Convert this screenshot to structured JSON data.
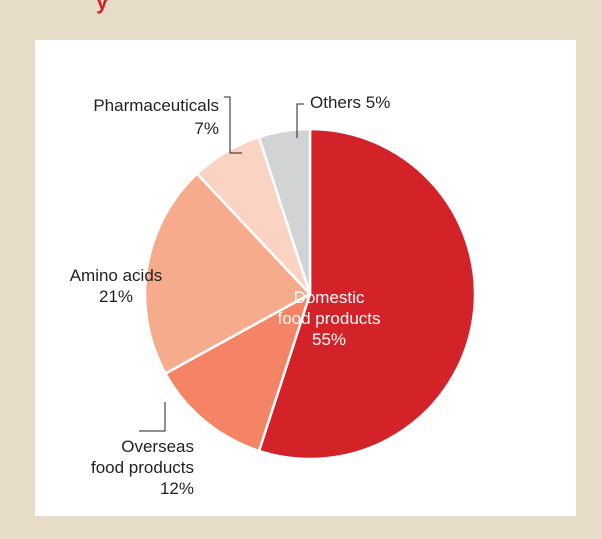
{
  "header_fragment": "y",
  "chart_data": {
    "type": "pie",
    "start_angle_deg": 0,
    "direction": "clockwise",
    "slices": [
      {
        "label": "Domestic food products",
        "value": 55,
        "color": "#d42229",
        "label_lines": [
          "Domestic",
          "food products",
          "55%"
        ],
        "label_color": "#ffffff",
        "placement": "inside"
      },
      {
        "label": "Overseas food products",
        "value": 12,
        "color": "#f58466",
        "label_lines": [
          "Overseas",
          "food products",
          "12%"
        ],
        "label_color": "#231f20",
        "placement": "outside"
      },
      {
        "label": "Amino acids",
        "value": 21,
        "color": "#f7ab8d",
        "label_lines": [
          "Amino acids",
          "21%"
        ],
        "label_color": "#231f20",
        "placement": "inside"
      },
      {
        "label": "Pharmaceuticals",
        "value": 7,
        "color": "#fbd3c2",
        "label_lines": [
          "Pharmaceuticals",
          "7%"
        ],
        "label_color": "#231f20",
        "placement": "outside"
      },
      {
        "label": "Others",
        "value": 5,
        "color": "#d1d3d4",
        "label_lines": [
          "Others 5%"
        ],
        "label_color": "#231f20",
        "placement": "outside"
      }
    ]
  }
}
